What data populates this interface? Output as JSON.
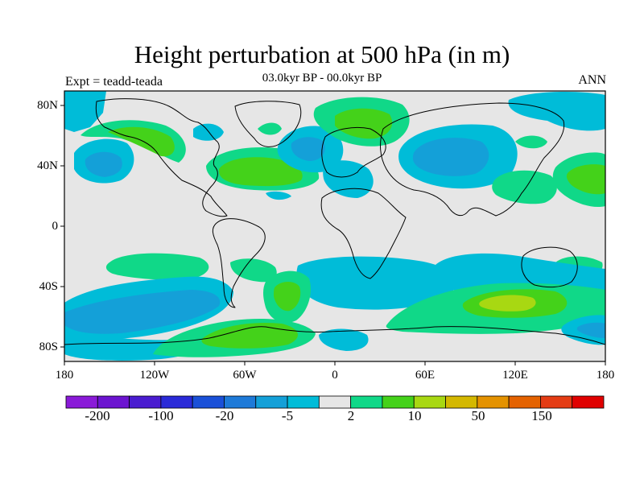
{
  "title": "Height perturbation at 500 hPa (in m)",
  "subtitle": "03.0kyr BP - 00.0kyr BP",
  "left_label": "Expt = teadd-teada",
  "right_label": "ANN",
  "lat_ticks": [
    "80N",
    "40N",
    "0",
    "40S",
    "80S"
  ],
  "lon_ticks": [
    "180",
    "120W",
    "60W",
    "0",
    "60E",
    "120E",
    "180"
  ],
  "colorbar": {
    "colors": [
      "#8a1ad8",
      "#6c14d0",
      "#4a1cd0",
      "#2a2ad8",
      "#1a50d8",
      "#1e7ad8",
      "#14a0d8",
      "#00bcd8",
      "#e6e6e6",
      "#10d888",
      "#44d21a",
      "#a8d812",
      "#d4b800",
      "#e49200",
      "#e46200",
      "#e43c14",
      "#e00000"
    ],
    "tick_labels": [
      "-200",
      "-100",
      "-20",
      "-5",
      "2",
      "10",
      "50",
      "150"
    ]
  },
  "palette": {
    "background": "#e6e6e6",
    "light_blue": "#00bcd8",
    "mid_blue": "#14a0d8",
    "light_green": "#10d888",
    "green": "#44d21a",
    "yellow_green": "#a8d812"
  }
}
